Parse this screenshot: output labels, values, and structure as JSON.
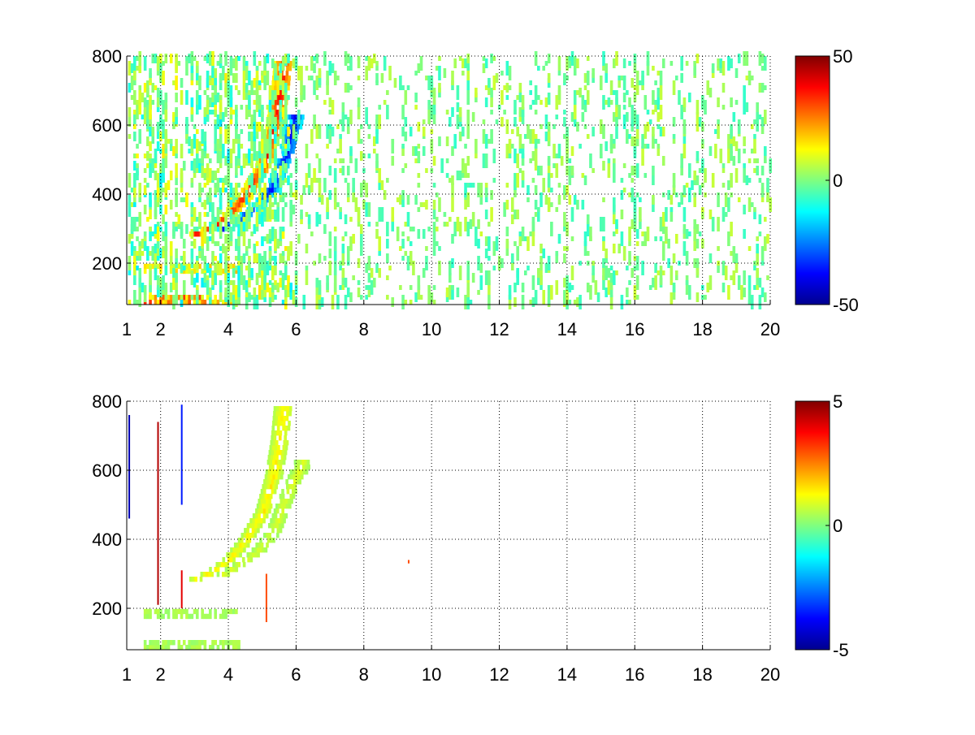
{
  "chart_data": [
    {
      "type": "heatmap",
      "title": "",
      "xlabel": "",
      "ylabel": "",
      "xlim": [
        1,
        20
      ],
      "ylim": [
        80,
        800
      ],
      "xticks": [
        1,
        2,
        4,
        6,
        8,
        10,
        12,
        14,
        16,
        18,
        20
      ],
      "yticks": [
        200,
        400,
        600,
        800
      ],
      "grid": true,
      "colormap": "jet",
      "colorbar": {
        "min": -50,
        "max": 50,
        "ticks": [
          50,
          0,
          -50
        ]
      },
      "features": [
        {
          "kind": "ridge",
          "sign": "positive",
          "points": [
            [
              2.8,
              275
            ],
            [
              3.5,
              305
            ],
            [
              4.0,
              340
            ],
            [
              4.5,
              400
            ],
            [
              5.0,
              480
            ],
            [
              5.3,
              580
            ],
            [
              5.5,
              690
            ],
            [
              5.6,
              780
            ]
          ],
          "peak_value": 40
        },
        {
          "kind": "ridge",
          "sign": "negative",
          "points": [
            [
              3.6,
              285
            ],
            [
              4.2,
              320
            ],
            [
              4.8,
              360
            ],
            [
              5.3,
              420
            ],
            [
              5.7,
              520
            ],
            [
              5.95,
              630
            ]
          ],
          "peak_value": -40
        },
        {
          "kind": "band",
          "y_range": [
            80,
            100
          ],
          "x_range": [
            1.5,
            4.3
          ],
          "peak_value": 35
        },
        {
          "kind": "band",
          "y_range": [
            170,
            190
          ],
          "x_range": [
            1.5,
            4.2
          ],
          "peak_value": 20
        }
      ],
      "noise": {
        "x_range": [
          1,
          20
        ],
        "amplitude": 8,
        "density": 0.12
      }
    },
    {
      "type": "heatmap",
      "title": "",
      "xlabel": "",
      "ylabel": "",
      "xlim": [
        1,
        20
      ],
      "ylim": [
        80,
        800
      ],
      "xticks": [
        1,
        2,
        4,
        6,
        8,
        10,
        12,
        14,
        16,
        18,
        20
      ],
      "yticks": [
        200,
        400,
        600,
        800
      ],
      "grid": true,
      "colormap": "jet",
      "colorbar": {
        "min": -5,
        "max": 5,
        "ticks": [
          5,
          0,
          -5
        ]
      },
      "features": [
        {
          "kind": "ridge",
          "sign": "positive",
          "points": [
            [
              2.8,
              275
            ],
            [
              3.5,
              305
            ],
            [
              4.0,
              340
            ],
            [
              4.5,
              400
            ],
            [
              5.0,
              480
            ],
            [
              5.3,
              580
            ],
            [
              5.5,
              690
            ],
            [
              5.6,
              780
            ]
          ],
          "peak_value": 1.5
        },
        {
          "kind": "ridge",
          "sign": "positive",
          "points": [
            [
              3.6,
              285
            ],
            [
              4.2,
              320
            ],
            [
              4.8,
              360
            ],
            [
              5.3,
              420
            ],
            [
              5.7,
              520
            ],
            [
              6.2,
              630
            ]
          ],
          "peak_value": 1.0
        },
        {
          "kind": "band",
          "y_range": [
            80,
            100
          ],
          "x_range": [
            1.5,
            4.3
          ],
          "peak_value": 0.6
        },
        {
          "kind": "band",
          "y_range": [
            170,
            190
          ],
          "x_range": [
            1.5,
            4.2
          ],
          "peak_value": 0.6
        }
      ],
      "spikes": [
        {
          "x": 1.05,
          "y_range": [
            460,
            760
          ],
          "value": -4.5
        },
        {
          "x": 1.9,
          "y_range": [
            210,
            740
          ],
          "value": 4.5
        },
        {
          "x": 2.6,
          "y_range": [
            500,
            790
          ],
          "value": -3.5
        },
        {
          "x": 2.6,
          "y_range": [
            200,
            310
          ],
          "value": 4.0
        },
        {
          "x": 5.1,
          "y_range": [
            160,
            300
          ],
          "value": 3.0
        },
        {
          "x": 9.3,
          "y_range": [
            330,
            340
          ],
          "value": 3.0
        }
      ]
    }
  ]
}
